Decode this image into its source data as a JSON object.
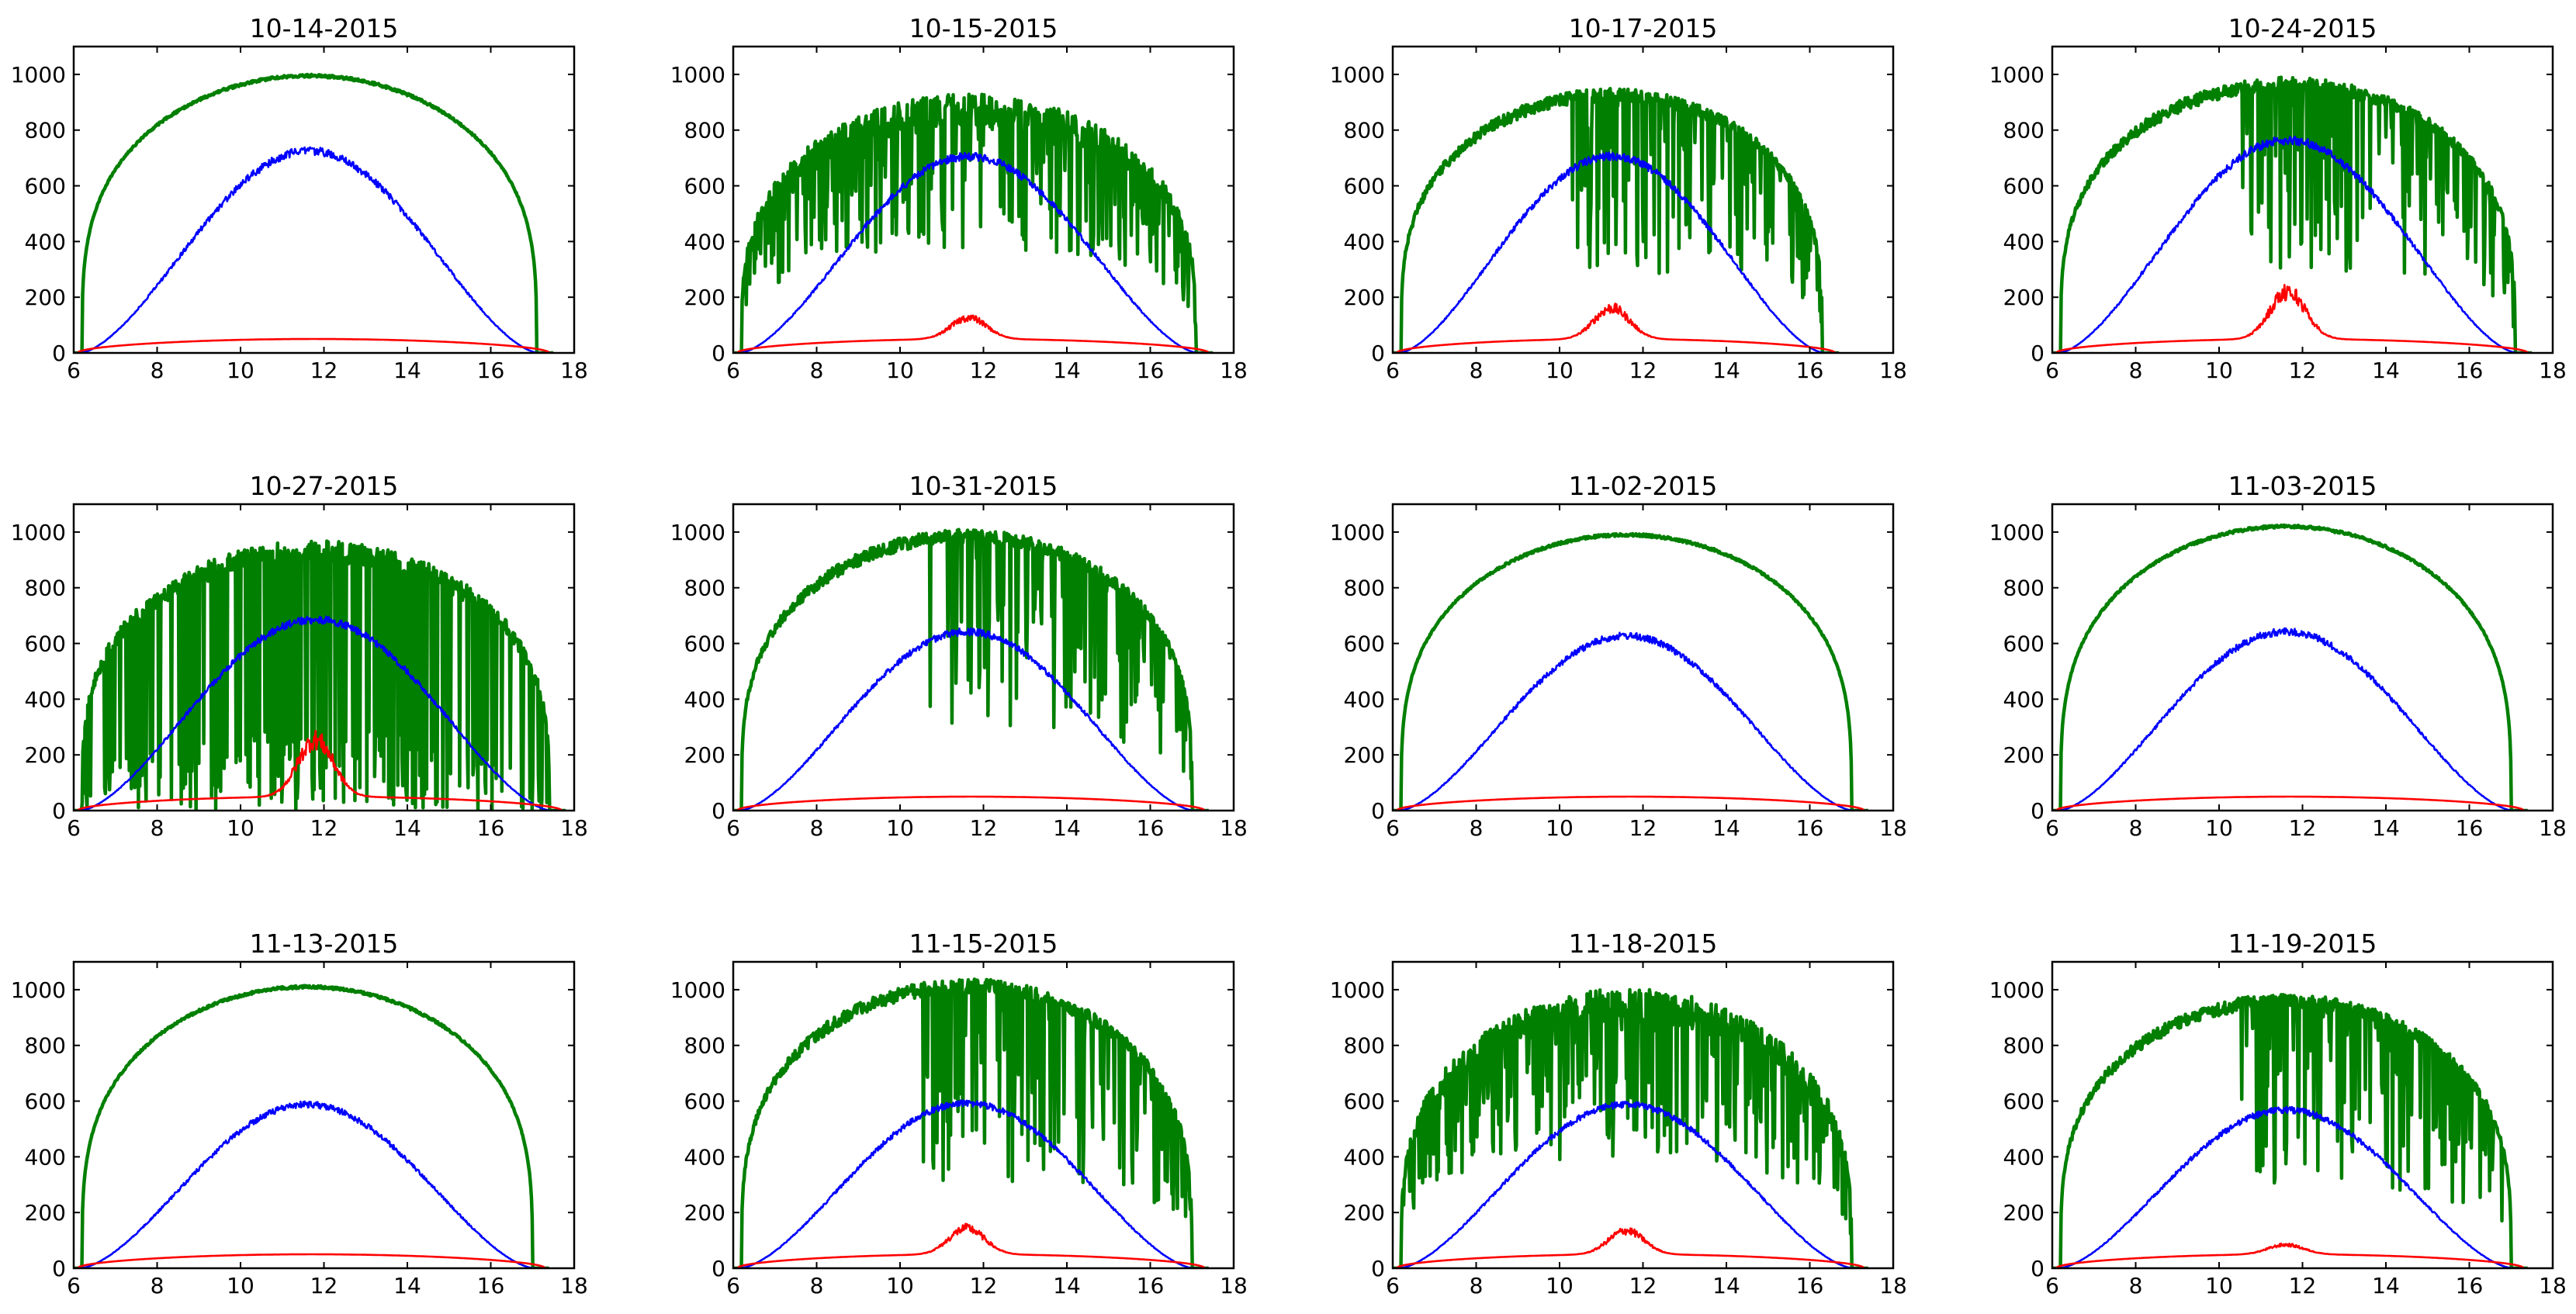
{
  "figure": {
    "rows": 3,
    "cols": 4
  },
  "colors": {
    "green": "#007f00",
    "blue": "#0000ff",
    "red": "#ff0000",
    "axis": "#000000"
  },
  "chart_data": [
    {
      "type": "line",
      "title": "10-14-2015",
      "xlim": [
        6,
        18
      ],
      "ylim": [
        0,
        1100
      ],
      "xticks": [
        "6",
        "8",
        "10",
        "12",
        "14",
        "16",
        "18"
      ],
      "yticks": [
        "0",
        "200",
        "400",
        "600",
        "800",
        "1000"
      ],
      "sunrise": 6.2,
      "sunset": 17.1,
      "series": [
        {
          "name": "green",
          "peak": 1000,
          "profile": "smooth"
        },
        {
          "name": "blue",
          "peak": 740
        },
        {
          "name": "red",
          "peak": 55
        }
      ]
    },
    {
      "type": "line",
      "title": "10-15-2015",
      "xlim": [
        6,
        18
      ],
      "ylim": [
        0,
        1100
      ],
      "xticks": [
        "6",
        "8",
        "10",
        "12",
        "14",
        "16",
        "18"
      ],
      "yticks": [
        "0",
        "200",
        "400",
        "600",
        "800",
        "1000"
      ],
      "sunrise": 6.2,
      "sunset": 17.1,
      "series": [
        {
          "name": "green",
          "peak": 930,
          "profile": "noisy"
        },
        {
          "name": "blue",
          "peak": 720
        },
        {
          "name": "red",
          "peak": 140
        }
      ]
    },
    {
      "type": "line",
      "title": "10-17-2015",
      "xlim": [
        6,
        18
      ],
      "ylim": [
        0,
        1100
      ],
      "xticks": [
        "6",
        "8",
        "10",
        "12",
        "14",
        "16",
        "18"
      ],
      "yticks": [
        "0",
        "200",
        "400",
        "600",
        "800",
        "1000"
      ],
      "sunrise": 6.2,
      "sunset": 16.3,
      "series": [
        {
          "name": "green",
          "peak": 950,
          "profile": "mixed"
        },
        {
          "name": "blue",
          "peak": 720
        },
        {
          "name": "red",
          "peak": 180
        }
      ]
    },
    {
      "type": "line",
      "title": "10-24-2015",
      "xlim": [
        6,
        18
      ],
      "ylim": [
        0,
        1100
      ],
      "xticks": [
        "6",
        "8",
        "10",
        "12",
        "14",
        "16",
        "18"
      ],
      "yticks": [
        "0",
        "200",
        "400",
        "600",
        "800",
        "1000"
      ],
      "sunrise": 6.2,
      "sunset": 17.1,
      "series": [
        {
          "name": "green",
          "peak": 990,
          "profile": "mixed"
        },
        {
          "name": "blue",
          "peak": 780
        },
        {
          "name": "red",
          "peak": 250
        }
      ]
    },
    {
      "type": "line",
      "title": "10-27-2015",
      "xlim": [
        6,
        18
      ],
      "ylim": [
        0,
        1100
      ],
      "xticks": [
        "6",
        "8",
        "10",
        "12",
        "14",
        "16",
        "18"
      ],
      "yticks": [
        "0",
        "200",
        "400",
        "600",
        "800",
        "1000"
      ],
      "sunrise": 6.2,
      "sunset": 17.4,
      "series": [
        {
          "name": "green",
          "peak": 970,
          "profile": "broken"
        },
        {
          "name": "blue",
          "peak": 700
        },
        {
          "name": "red",
          "peak": 290
        }
      ]
    },
    {
      "type": "line",
      "title": "10-31-2015",
      "xlim": [
        6,
        18
      ],
      "ylim": [
        0,
        1100
      ],
      "xticks": [
        "6",
        "8",
        "10",
        "12",
        "14",
        "16",
        "18"
      ],
      "yticks": [
        "0",
        "200",
        "400",
        "600",
        "800",
        "1000"
      ],
      "sunrise": 6.2,
      "sunset": 17.0,
      "series": [
        {
          "name": "green",
          "peak": 1010,
          "profile": "mixed"
        },
        {
          "name": "blue",
          "peak": 655
        },
        {
          "name": "red",
          "peak": 60
        }
      ]
    },
    {
      "type": "line",
      "title": "11-02-2015",
      "xlim": [
        6,
        18
      ],
      "ylim": [
        0,
        1100
      ],
      "xticks": [
        "6",
        "8",
        "10",
        "12",
        "14",
        "16",
        "18"
      ],
      "yticks": [
        "0",
        "200",
        "400",
        "600",
        "800",
        "1000"
      ],
      "sunrise": 6.2,
      "sunset": 17.0,
      "series": [
        {
          "name": "green",
          "peak": 995,
          "profile": "smooth"
        },
        {
          "name": "blue",
          "peak": 640
        },
        {
          "name": "red",
          "peak": 50
        }
      ]
    },
    {
      "type": "line",
      "title": "11-03-2015",
      "xlim": [
        6,
        18
      ],
      "ylim": [
        0,
        1100
      ],
      "xticks": [
        "6",
        "8",
        "10",
        "12",
        "14",
        "16",
        "18"
      ],
      "yticks": [
        "0",
        "200",
        "400",
        "600",
        "800",
        "1000"
      ],
      "sunrise": 6.2,
      "sunset": 17.0,
      "series": [
        {
          "name": "green",
          "peak": 1025,
          "profile": "smooth"
        },
        {
          "name": "blue",
          "peak": 655
        },
        {
          "name": "red",
          "peak": 50
        }
      ]
    },
    {
      "type": "line",
      "title": "11-13-2015",
      "xlim": [
        6,
        18
      ],
      "ylim": [
        0,
        1100
      ],
      "xticks": [
        "6",
        "8",
        "10",
        "12",
        "14",
        "16",
        "18"
      ],
      "yticks": [
        "0",
        "200",
        "400",
        "600",
        "800",
        "1000"
      ],
      "sunrise": 6.2,
      "sunset": 17.0,
      "series": [
        {
          "name": "green",
          "peak": 1015,
          "profile": "smooth"
        },
        {
          "name": "blue",
          "peak": 600
        },
        {
          "name": "red",
          "peak": 50
        }
      ]
    },
    {
      "type": "line",
      "title": "11-15-2015",
      "xlim": [
        6,
        18
      ],
      "ylim": [
        0,
        1100
      ],
      "xticks": [
        "6",
        "8",
        "10",
        "12",
        "14",
        "16",
        "18"
      ],
      "yticks": [
        "0",
        "200",
        "400",
        "600",
        "800",
        "1000"
      ],
      "sunrise": 6.2,
      "sunset": 17.0,
      "series": [
        {
          "name": "green",
          "peak": 1040,
          "profile": "mixed"
        },
        {
          "name": "blue",
          "peak": 605
        },
        {
          "name": "red",
          "peak": 160
        }
      ]
    },
    {
      "type": "line",
      "title": "11-18-2015",
      "xlim": [
        6,
        18
      ],
      "ylim": [
        0,
        1100
      ],
      "xticks": [
        "6",
        "8",
        "10",
        "12",
        "14",
        "16",
        "18"
      ],
      "yticks": [
        "0",
        "200",
        "400",
        "600",
        "800",
        "1000"
      ],
      "sunrise": 6.2,
      "sunset": 17.0,
      "series": [
        {
          "name": "green",
          "peak": 1005,
          "profile": "noisy"
        },
        {
          "name": "blue",
          "peak": 600
        },
        {
          "name": "red",
          "peak": 150
        }
      ]
    },
    {
      "type": "line",
      "title": "11-19-2015",
      "xlim": [
        6,
        18
      ],
      "ylim": [
        0,
        1100
      ],
      "xticks": [
        "6",
        "8",
        "10",
        "12",
        "14",
        "16",
        "18"
      ],
      "yticks": [
        "0",
        "200",
        "400",
        "600",
        "800",
        "1000"
      ],
      "sunrise": 6.2,
      "sunset": 17.0,
      "series": [
        {
          "name": "green",
          "peak": 985,
          "profile": "mixed"
        },
        {
          "name": "blue",
          "peak": 580
        },
        {
          "name": "red",
          "peak": 90
        }
      ]
    }
  ]
}
